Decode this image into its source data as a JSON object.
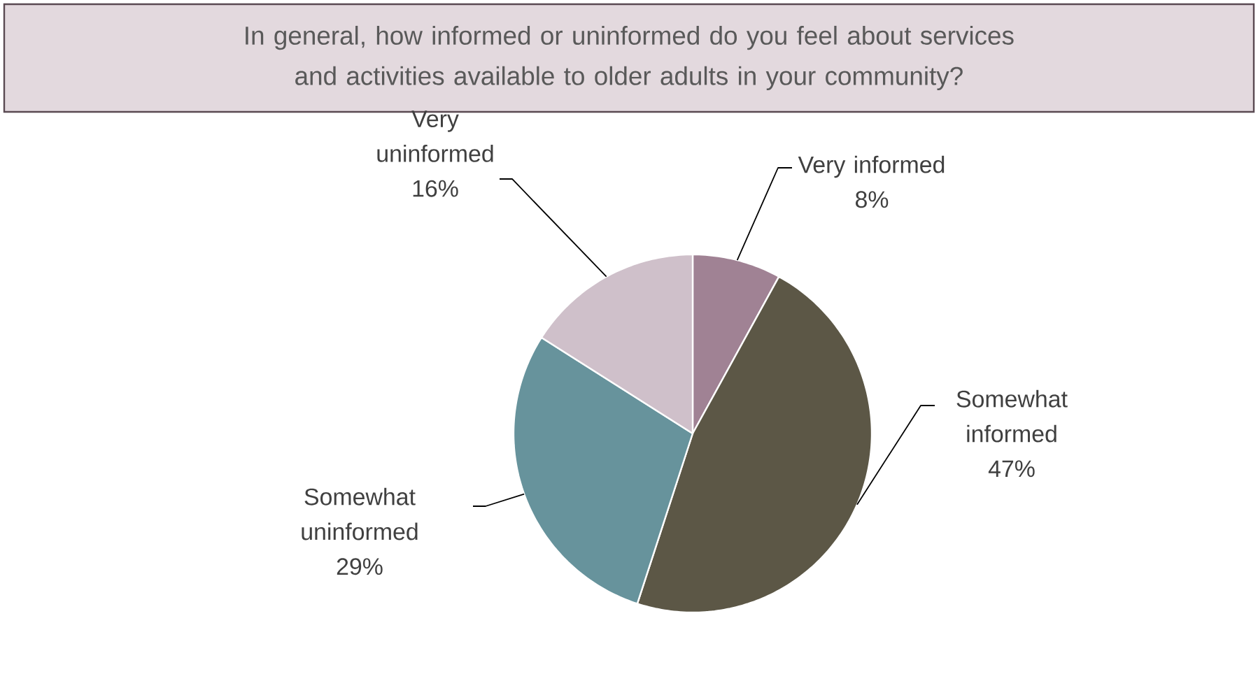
{
  "chart_data": {
    "type": "pie",
    "title": "In general, how informed or uninformed do you feel about services and activities available to older adults in your community?",
    "categories": [
      "Very informed",
      "Somewhat informed",
      "Somewhat uninformed",
      "Very uninformed"
    ],
    "values": [
      8,
      47,
      29,
      16
    ],
    "value_labels": [
      "8%",
      "47%",
      "29%",
      "16%"
    ],
    "colors": [
      "#a08294",
      "#5c5746",
      "#67939c",
      "#cfc0ca"
    ]
  }
}
